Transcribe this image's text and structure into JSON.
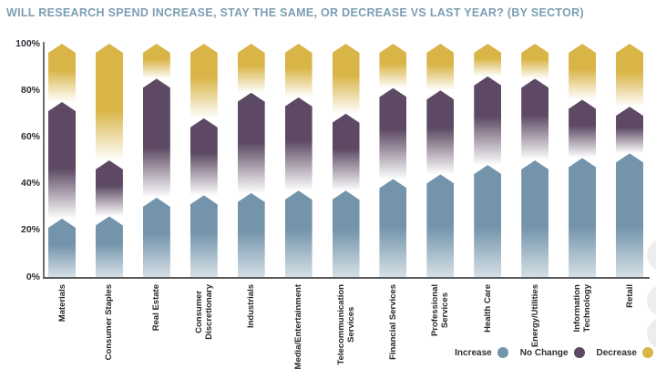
{
  "title": "WILL RESEARCH SPEND INCREASE, STAY THE SAME, OR DECREASE VS LAST YEAR? (BY SECTOR)",
  "colors": {
    "increase": "#7394ab",
    "no_change": "#5d4963",
    "decrease": "#d9b446",
    "title_text": "#7a9eb3",
    "axis": "#6d6e71",
    "tick_text": "#2e2e36",
    "edge_button": "#ededed"
  },
  "chart_data": {
    "type": "bar",
    "stacked": true,
    "orientation": "vertical",
    "title": "WILL RESEARCH SPEND INCREASE, STAY THE SAME, OR DECREASE VS LAST YEAR? (BY SECTOR)",
    "categories": [
      "Materials",
      "Consumer Staples",
      "Real Estate",
      "Consumer Discretionary",
      "Industrials",
      "Media/Entertainment",
      "Telecommunication Services",
      "Financial Services",
      "Professional Services",
      "Health Care",
      "Energy/Utilities",
      "Information Technology",
      "Retail"
    ],
    "category_label_lines": [
      [
        "Materials"
      ],
      [
        "Consumer Staples"
      ],
      [
        "Real Estate"
      ],
      [
        "Consumer",
        "Discretionary"
      ],
      [
        "Industrials"
      ],
      [
        "Media/Entertainment"
      ],
      [
        "Telecommunication",
        "Services"
      ],
      [
        "Financial Services"
      ],
      [
        "Professional",
        "Services"
      ],
      [
        "Health Care"
      ],
      [
        "Energy/Utilities"
      ],
      [
        "Information",
        "Technology"
      ],
      [
        "Retail"
      ]
    ],
    "series": [
      {
        "name": "Increase",
        "color": "#7394ab",
        "values": [
          25,
          26,
          34,
          35,
          36,
          37,
          37,
          42,
          44,
          48,
          50,
          51,
          53
        ]
      },
      {
        "name": "No Change",
        "color": "#5d4963",
        "values": [
          50,
          24,
          51,
          33,
          43,
          40,
          33,
          39,
          36,
          38,
          35,
          25,
          20
        ]
      },
      {
        "name": "Decrease",
        "color": "#d9b446",
        "values": [
          25,
          50,
          15,
          32,
          21,
          23,
          30,
          19,
          20,
          14,
          15,
          24,
          27
        ]
      }
    ],
    "y_ticks": [
      "0%",
      "20%",
      "40%",
      "60%",
      "80%",
      "100%"
    ],
    "y_tick_values": [
      0,
      20,
      40,
      60,
      80,
      100
    ],
    "ylim": [
      0,
      100
    ],
    "grid": false,
    "legend": [
      "Increase",
      "No Change",
      "Decrease"
    ],
    "legend_position": "bottom-right",
    "bar_style": "upward-arrow segments fading to white at their base"
  },
  "edge_buttons_count": 3
}
